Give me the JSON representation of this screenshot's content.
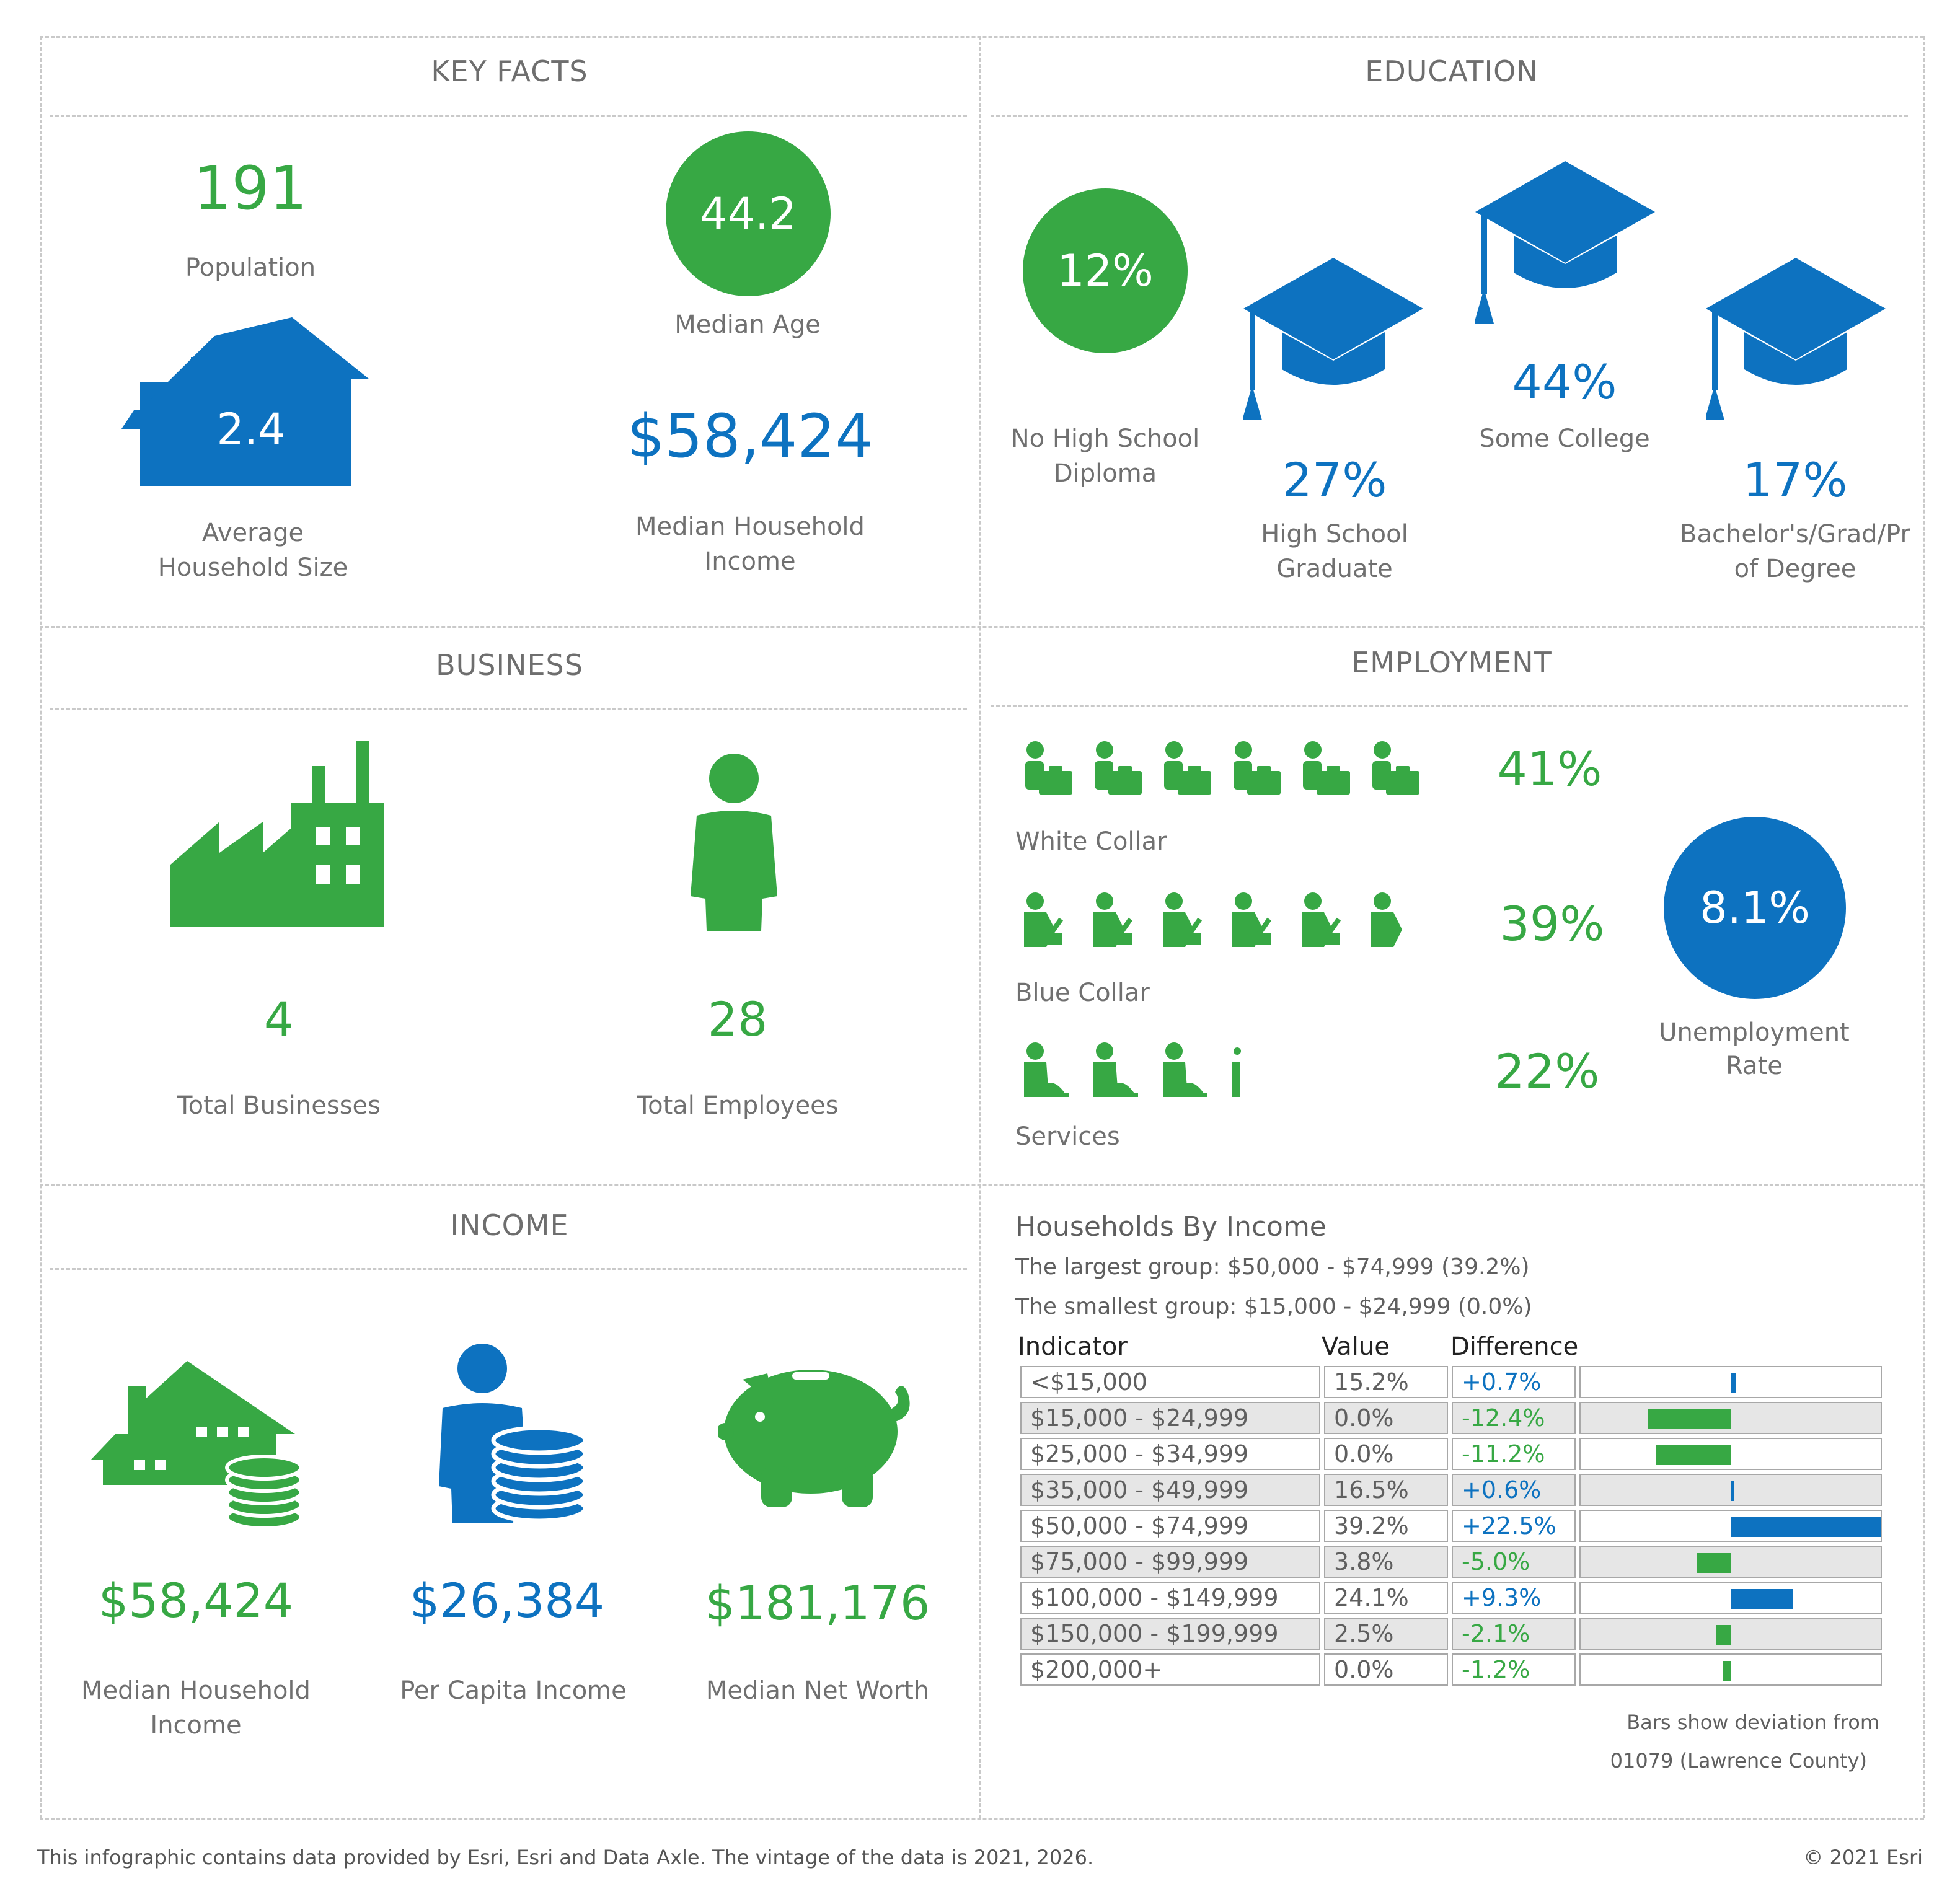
{
  "key_facts": {
    "title": "KEY FACTS",
    "population": {
      "value": "191",
      "label": "Population"
    },
    "median_age": {
      "value": "44.2",
      "label": "Median Age"
    },
    "household_size": {
      "value": "2.4",
      "label_line1": "Average",
      "label_line2": "Household Size"
    },
    "median_household_income": {
      "value": "$58,424",
      "label_line1": "Median Household",
      "label_line2": "Income"
    }
  },
  "education": {
    "title": "EDUCATION",
    "no_high_school": {
      "value": "12%",
      "label_line1": "No High School",
      "label_line2": "Diploma"
    },
    "high_school_graduate": {
      "value": "27%",
      "label_line1": "High School",
      "label_line2": "Graduate"
    },
    "some_college": {
      "value": "44%",
      "label": "Some College"
    },
    "bachelors": {
      "value": "17%",
      "label_line1": "Bachelor's/Grad/Pr",
      "label_line2": "of Degree"
    }
  },
  "business": {
    "title": "BUSINESS",
    "total_businesses": {
      "value": "4",
      "label": "Total Businesses"
    },
    "total_employees": {
      "value": "28",
      "label": "Total Employees"
    }
  },
  "employment": {
    "title": "EMPLOYMENT",
    "white_collar": {
      "value": "41%",
      "label": "White Collar",
      "pct": 41
    },
    "blue_collar": {
      "value": "39%",
      "label": "Blue Collar",
      "pct": 39
    },
    "services": {
      "value": "22%",
      "label": "Services",
      "pct": 22
    },
    "unemployment": {
      "value": "8.1%",
      "label_line1": "Unemployment",
      "label_line2": "Rate"
    }
  },
  "income": {
    "title": "INCOME",
    "median_household_income": {
      "value": "$58,424",
      "label_line1": "Median Household",
      "label_line2": "Income"
    },
    "per_capita_income": {
      "value": "$26,384",
      "label": "Per Capita Income"
    },
    "median_net_worth": {
      "value": "$181,176",
      "label": "Median Net Worth"
    }
  },
  "households_by_income": {
    "title": "Households By Income",
    "largest_group": "The largest group: $50,000 - $74,999 (39.2%)",
    "smallest_group": "The smallest group: $15,000 - $24,999 (0.0%)",
    "headers": {
      "indicator": "Indicator",
      "value": "Value",
      "difference": "Difference"
    },
    "rows": [
      {
        "indicator": "<$15,000",
        "value": "15.2%",
        "difference": "+0.7%",
        "diff": 0.7
      },
      {
        "indicator": "$15,000 - $24,999",
        "value": "0.0%",
        "difference": "-12.4%",
        "diff": -12.4
      },
      {
        "indicator": "$25,000 - $34,999",
        "value": "0.0%",
        "difference": "-11.2%",
        "diff": -11.2
      },
      {
        "indicator": "$35,000 - $49,999",
        "value": "16.5%",
        "difference": "+0.6%",
        "diff": 0.6
      },
      {
        "indicator": "$50,000 - $74,999",
        "value": "39.2%",
        "difference": "+22.5%",
        "diff": 22.5
      },
      {
        "indicator": "$75,000 - $99,999",
        "value": "3.8%",
        "difference": "-5.0%",
        "diff": -5.0
      },
      {
        "indicator": "$100,000 - $149,999",
        "value": "24.1%",
        "difference": "+9.3%",
        "diff": 9.3
      },
      {
        "indicator": "$150,000 - $199,999",
        "value": "2.5%",
        "difference": "-2.1%",
        "diff": -2.1
      },
      {
        "indicator": "$200,000+",
        "value": "0.0%",
        "difference": "-1.2%",
        "diff": -1.2
      }
    ],
    "note_line1": "Bars show deviation from",
    "note_line2": "01079 (Lawrence County)"
  },
  "footer": {
    "source": "This infographic contains data provided by Esri, Esri and Data Axle. The vintage of the data is 2021, 2026.",
    "copyright": "© 2021 Esri"
  },
  "colors": {
    "green": "#37a844",
    "blue": "#0d72c0"
  }
}
